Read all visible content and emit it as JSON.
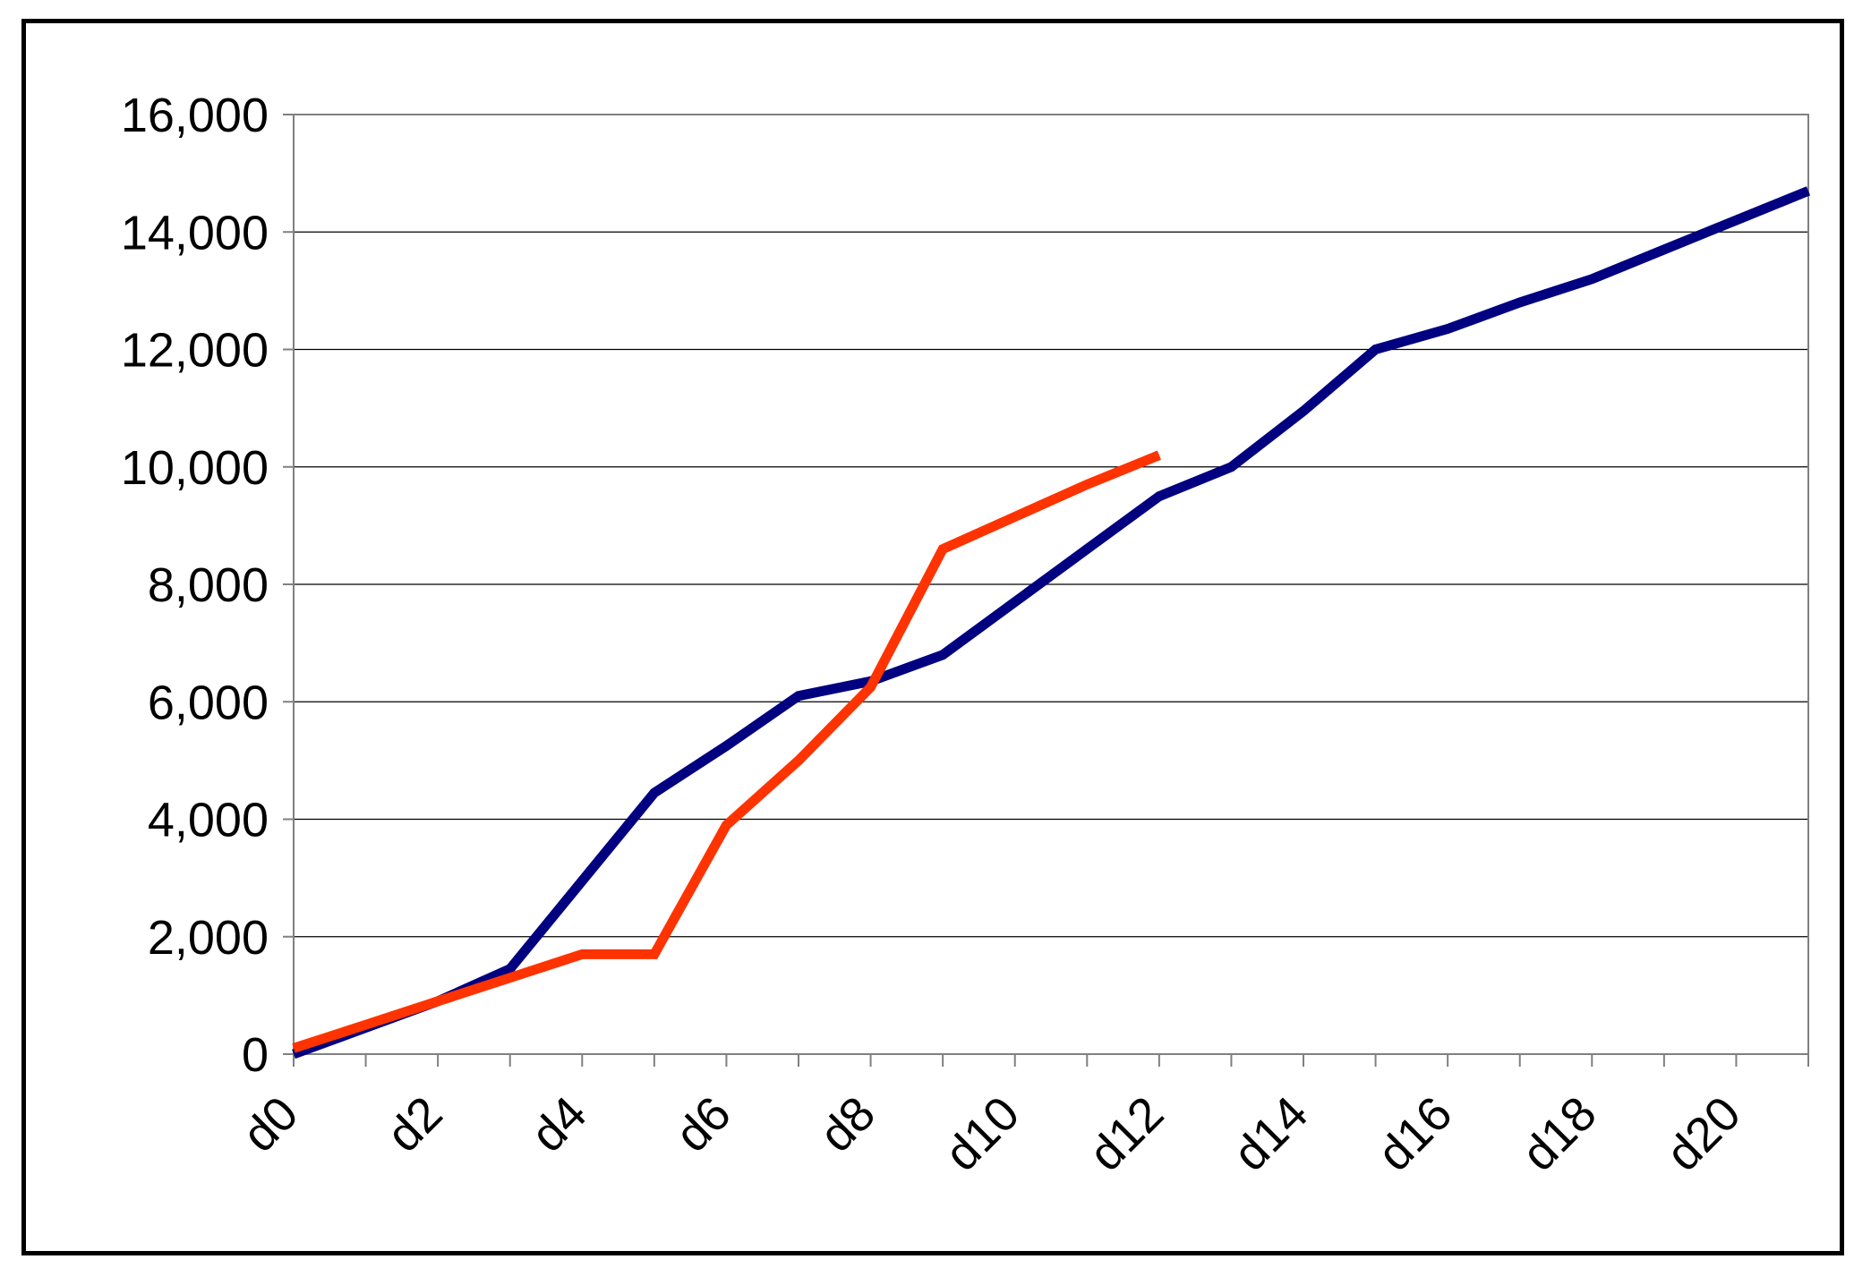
{
  "chart_data": {
    "type": "line",
    "title": "",
    "xlabel": "",
    "ylabel": "",
    "x_labels": [
      "d0",
      "d2",
      "d4",
      "d6",
      "d8",
      "d10",
      "d12",
      "d14",
      "d16",
      "d18",
      "d20"
    ],
    "y_tick_labels": [
      "0",
      "2,000",
      "4,000",
      "6,000",
      "8,000",
      "10,000",
      "12,000",
      "14,000",
      "16,000"
    ],
    "ylim": [
      0,
      16000
    ],
    "xlim": [
      0,
      20
    ],
    "grid": "horizontal",
    "legend": "none",
    "series": [
      {
        "color": "#000080",
        "points": [
          [
            0,
            0
          ],
          [
            1,
            450
          ],
          [
            2,
            900
          ],
          [
            3,
            1450
          ],
          [
            4,
            2950
          ],
          [
            5,
            4450
          ],
          [
            6,
            5250
          ],
          [
            7,
            6100
          ],
          [
            8,
            6350
          ],
          [
            9,
            6800
          ],
          [
            10,
            7700
          ],
          [
            11,
            8600
          ],
          [
            11.5,
            9050
          ],
          [
            12,
            9500
          ],
          [
            13,
            10000
          ],
          [
            14,
            10950
          ],
          [
            15,
            12000
          ],
          [
            16,
            12350
          ],
          [
            17,
            12800
          ],
          [
            18,
            13200
          ],
          [
            19,
            13700
          ],
          [
            20,
            14200
          ],
          [
            21,
            14700
          ]
        ]
      },
      {
        "color": "#ff3300",
        "points": [
          [
            0,
            100
          ],
          [
            1,
            500
          ],
          [
            2,
            900
          ],
          [
            3,
            1300
          ],
          [
            4,
            1700
          ],
          [
            5,
            1700
          ],
          [
            6,
            3900
          ],
          [
            7,
            5000
          ],
          [
            8,
            6250
          ],
          [
            9,
            8600
          ],
          [
            10,
            9150
          ],
          [
            11,
            9700
          ],
          [
            12,
            10200
          ]
        ]
      }
    ]
  }
}
